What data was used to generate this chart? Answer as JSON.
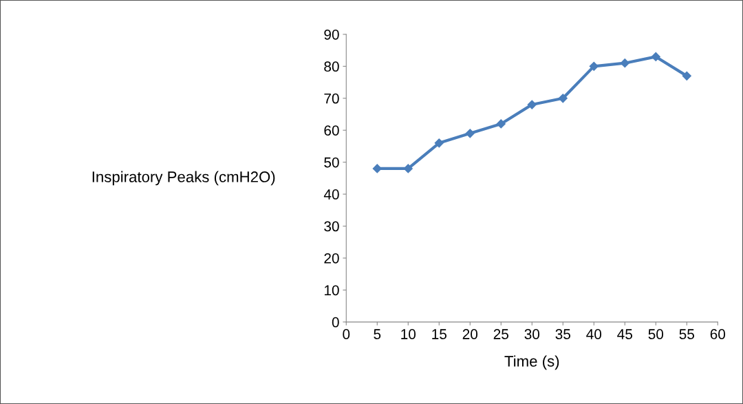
{
  "chart_data": {
    "type": "line",
    "xlabel": "Time (s)",
    "ylabel": "Inspiratory Peaks (cmH2O)",
    "x": [
      5,
      10,
      15,
      20,
      25,
      30,
      35,
      40,
      45,
      50,
      55
    ],
    "series": [
      {
        "color": "#4a7ebb",
        "values": [
          48,
          48,
          56,
          59,
          62,
          68,
          70,
          80,
          81,
          83,
          77
        ]
      }
    ],
    "xlim": [
      0,
      60
    ],
    "xticks": [
      0,
      5,
      10,
      15,
      20,
      25,
      30,
      35,
      40,
      45,
      50,
      55,
      60
    ],
    "ylim": [
      0,
      90
    ],
    "yticks": [
      0,
      10,
      20,
      30,
      40,
      50,
      60,
      70,
      80,
      90
    ],
    "grid": false,
    "legend": false,
    "marker": "diamond",
    "line_style": "solid"
  }
}
